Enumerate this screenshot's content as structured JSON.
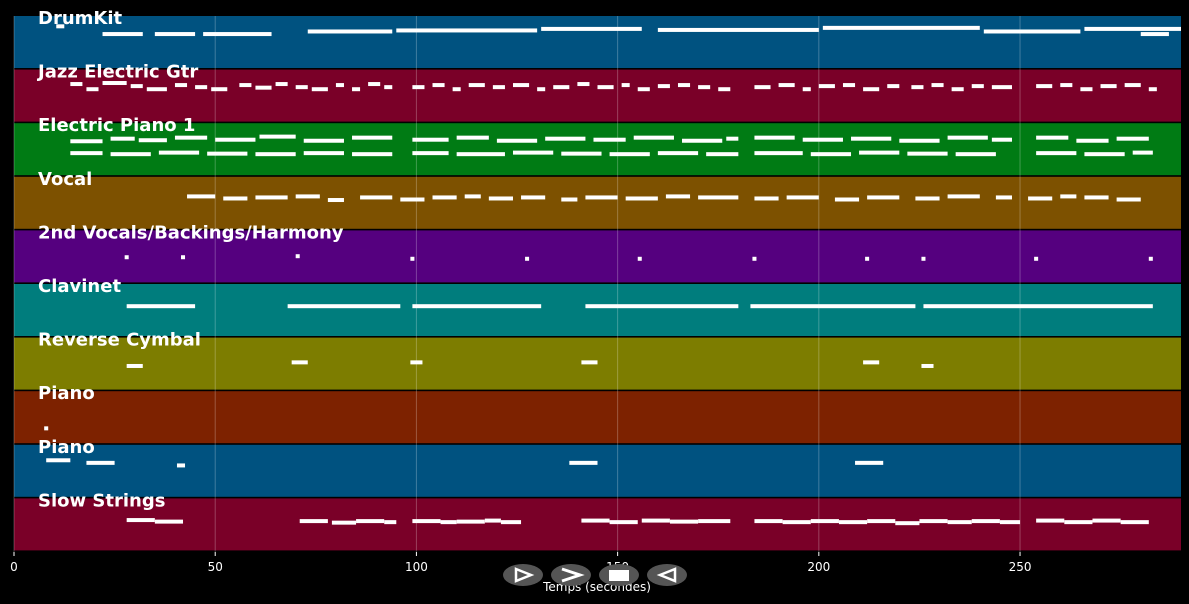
{
  "chart_data": {
    "type": "piano-roll",
    "xlabel": "Temps (secondes)",
    "xlim": [
      0,
      290
    ],
    "xticks": [
      0,
      50,
      100,
      150,
      200,
      250
    ],
    "grid": true,
    "tracks": [
      {
        "name": "DrumKit",
        "color": "#005280",
        "notes": [
          [
            10.5,
            12.5,
            0.8
          ],
          [
            22,
            32,
            0.65
          ],
          [
            35,
            45,
            0.65
          ],
          [
            47,
            64,
            0.65
          ],
          [
            73,
            94,
            0.7
          ],
          [
            95,
            130,
            0.72
          ],
          [
            131,
            156,
            0.75
          ],
          [
            160,
            200,
            0.73
          ],
          [
            201,
            240,
            0.77
          ],
          [
            241,
            265,
            0.7
          ],
          [
            266,
            290,
            0.75
          ],
          [
            280,
            287,
            0.65
          ]
        ]
      },
      {
        "name": "Jazz Electric Gtr",
        "color": "#7a0028",
        "notes": [
          [
            14,
            17,
            0.72
          ],
          [
            18,
            21,
            0.62
          ],
          [
            22,
            28,
            0.74
          ],
          [
            29,
            32,
            0.68
          ],
          [
            33,
            38,
            0.62
          ],
          [
            40,
            43,
            0.7
          ],
          [
            45,
            48,
            0.66
          ],
          [
            49,
            53,
            0.62
          ],
          [
            56,
            59,
            0.7
          ],
          [
            60,
            64,
            0.65
          ],
          [
            65,
            68,
            0.72
          ],
          [
            70,
            73,
            0.66
          ],
          [
            74,
            78,
            0.62
          ],
          [
            80,
            82,
            0.7
          ],
          [
            84,
            86,
            0.62
          ],
          [
            88,
            91,
            0.72
          ],
          [
            92,
            94,
            0.66
          ],
          [
            99,
            102,
            0.66
          ],
          [
            104,
            107,
            0.7
          ],
          [
            109,
            111,
            0.62
          ],
          [
            113,
            117,
            0.7
          ],
          [
            119,
            122,
            0.66
          ],
          [
            124,
            128,
            0.7
          ],
          [
            130,
            132,
            0.62
          ],
          [
            134,
            138,
            0.66
          ],
          [
            140,
            143,
            0.72
          ],
          [
            145,
            149,
            0.66
          ],
          [
            151,
            153,
            0.7
          ],
          [
            155,
            158,
            0.62
          ],
          [
            160,
            163,
            0.68
          ],
          [
            165,
            168,
            0.7
          ],
          [
            170,
            173,
            0.66
          ],
          [
            175,
            178,
            0.62
          ],
          [
            184,
            188,
            0.66
          ],
          [
            190,
            194,
            0.7
          ],
          [
            196,
            198,
            0.62
          ],
          [
            200,
            204,
            0.68
          ],
          [
            206,
            209,
            0.7
          ],
          [
            211,
            215,
            0.62
          ],
          [
            217,
            220,
            0.68
          ],
          [
            223,
            226,
            0.66
          ],
          [
            228,
            231,
            0.7
          ],
          [
            233,
            236,
            0.62
          ],
          [
            238,
            241,
            0.68
          ],
          [
            243,
            248,
            0.66
          ],
          [
            254,
            258,
            0.68
          ],
          [
            260,
            263,
            0.7
          ],
          [
            265,
            268,
            0.62
          ],
          [
            270,
            274,
            0.68
          ],
          [
            276,
            280,
            0.7
          ],
          [
            282,
            284,
            0.62
          ]
        ]
      },
      {
        "name": "Electric Piano 1",
        "color": "#007b14",
        "notes": [
          [
            14,
            22,
            0.65
          ],
          [
            24,
            30,
            0.7
          ],
          [
            31,
            38,
            0.67
          ],
          [
            40,
            48,
            0.72
          ],
          [
            50,
            60,
            0.68
          ],
          [
            61,
            70,
            0.74
          ],
          [
            72,
            82,
            0.66
          ],
          [
            84,
            94,
            0.72
          ],
          [
            99,
            108,
            0.68
          ],
          [
            110,
            118,
            0.72
          ],
          [
            120,
            130,
            0.66
          ],
          [
            132,
            142,
            0.7
          ],
          [
            144,
            152,
            0.68
          ],
          [
            154,
            164,
            0.72
          ],
          [
            166,
            176,
            0.66
          ],
          [
            177,
            180,
            0.7
          ],
          [
            184,
            194,
            0.72
          ],
          [
            196,
            206,
            0.68
          ],
          [
            208,
            218,
            0.7
          ],
          [
            220,
            230,
            0.66
          ],
          [
            232,
            242,
            0.72
          ],
          [
            243,
            248,
            0.68
          ],
          [
            254,
            262,
            0.72
          ],
          [
            264,
            272,
            0.66
          ],
          [
            274,
            282,
            0.7
          ],
          [
            14,
            22,
            0.42
          ],
          [
            24,
            34,
            0.4
          ],
          [
            36,
            46,
            0.43
          ],
          [
            48,
            58,
            0.41
          ],
          [
            60,
            70,
            0.4
          ],
          [
            72,
            82,
            0.42
          ],
          [
            84,
            94,
            0.4
          ],
          [
            99,
            108,
            0.42
          ],
          [
            110,
            122,
            0.4
          ],
          [
            124,
            134,
            0.43
          ],
          [
            136,
            146,
            0.41
          ],
          [
            148,
            158,
            0.4
          ],
          [
            160,
            170,
            0.42
          ],
          [
            172,
            180,
            0.4
          ],
          [
            184,
            196,
            0.42
          ],
          [
            198,
            208,
            0.4
          ],
          [
            210,
            220,
            0.43
          ],
          [
            222,
            232,
            0.41
          ],
          [
            234,
            244,
            0.4
          ],
          [
            254,
            264,
            0.42
          ],
          [
            266,
            276,
            0.4
          ],
          [
            278,
            283,
            0.43
          ]
        ]
      },
      {
        "name": "Vocal",
        "color": "#7d5100",
        "notes": [
          [
            43,
            50,
            0.62
          ],
          [
            52,
            58,
            0.58
          ],
          [
            60,
            68,
            0.6
          ],
          [
            70,
            76,
            0.62
          ],
          [
            78,
            82,
            0.55
          ],
          [
            86,
            94,
            0.6
          ],
          [
            96,
            102,
            0.56
          ],
          [
            104,
            110,
            0.6
          ],
          [
            112,
            116,
            0.62
          ],
          [
            118,
            124,
            0.58
          ],
          [
            126,
            132,
            0.6
          ],
          [
            136,
            140,
            0.56
          ],
          [
            142,
            150,
            0.6
          ],
          [
            152,
            160,
            0.58
          ],
          [
            162,
            168,
            0.62
          ],
          [
            170,
            180,
            0.6
          ],
          [
            184,
            190,
            0.58
          ],
          [
            192,
            200,
            0.6
          ],
          [
            204,
            210,
            0.56
          ],
          [
            212,
            220,
            0.6
          ],
          [
            224,
            230,
            0.58
          ],
          [
            232,
            240,
            0.62
          ],
          [
            244,
            248,
            0.6
          ],
          [
            252,
            258,
            0.58
          ],
          [
            260,
            264,
            0.62
          ],
          [
            266,
            272,
            0.6
          ],
          [
            274,
            280,
            0.56
          ]
        ]
      },
      {
        "name": "2nd Vocals/Backings/Harmony",
        "color": "#55007f",
        "notes": [
          [
            27.5,
            28.5,
            0.48
          ],
          [
            41.5,
            42.5,
            0.48
          ],
          [
            70,
            71,
            0.5
          ],
          [
            98.5,
            99.5,
            0.45
          ],
          [
            127,
            128,
            0.45
          ],
          [
            155,
            156,
            0.45
          ],
          [
            183.5,
            184.5,
            0.45
          ],
          [
            211.5,
            212.5,
            0.45
          ],
          [
            225.5,
            226.5,
            0.45
          ],
          [
            253.5,
            254.5,
            0.45
          ],
          [
            282,
            283,
            0.45
          ]
        ]
      },
      {
        "name": "Clavinet",
        "color": "#007d7d",
        "notes": [
          [
            28,
            45,
            0.57
          ],
          [
            68,
            96,
            0.57
          ],
          [
            99,
            131,
            0.57
          ],
          [
            142,
            180,
            0.57
          ],
          [
            183,
            224,
            0.57
          ],
          [
            226,
            283,
            0.57
          ]
        ]
      },
      {
        "name": "Reverse Cymbal",
        "color": "#7d7d00",
        "notes": [
          [
            28,
            32,
            0.45
          ],
          [
            69,
            73,
            0.52
          ],
          [
            98.5,
            101.5,
            0.52
          ],
          [
            141,
            145,
            0.52
          ],
          [
            211,
            215,
            0.52
          ],
          [
            225.5,
            228.5,
            0.45
          ]
        ]
      },
      {
        "name": "Piano",
        "color": "#7d2200",
        "notes": [
          [
            7.5,
            8.5,
            0.28
          ]
        ]
      },
      {
        "name": "Piano",
        "color": "#005280",
        "notes": [
          [
            8,
            14,
            0.7
          ],
          [
            18,
            25,
            0.65
          ],
          [
            40.5,
            42.5,
            0.6
          ],
          [
            138,
            145,
            0.65
          ],
          [
            209,
            216,
            0.65
          ]
        ]
      },
      {
        "name": "Slow Strings",
        "color": "#7a0028",
        "notes": [
          [
            28,
            35,
            0.58
          ],
          [
            35,
            42,
            0.55
          ],
          [
            71,
            78,
            0.56
          ],
          [
            79,
            85,
            0.53
          ],
          [
            85,
            92,
            0.56
          ],
          [
            92,
            95,
            0.54
          ],
          [
            99,
            106,
            0.56
          ],
          [
            106,
            110,
            0.54
          ],
          [
            110,
            117,
            0.55
          ],
          [
            117,
            121,
            0.57
          ],
          [
            121,
            126,
            0.54
          ],
          [
            141,
            148,
            0.57
          ],
          [
            148,
            155,
            0.54
          ],
          [
            156,
            163,
            0.57
          ],
          [
            163,
            170,
            0.55
          ],
          [
            170,
            178,
            0.56
          ],
          [
            184,
            191,
            0.56
          ],
          [
            191,
            198,
            0.54
          ],
          [
            198,
            205,
            0.56
          ],
          [
            205,
            212,
            0.54
          ],
          [
            212,
            219,
            0.56
          ],
          [
            219,
            225,
            0.52
          ],
          [
            225,
            232,
            0.56
          ],
          [
            232,
            238,
            0.54
          ],
          [
            238,
            245,
            0.56
          ],
          [
            245,
            250,
            0.54
          ],
          [
            254,
            261,
            0.57
          ],
          [
            261,
            268,
            0.54
          ],
          [
            268,
            275,
            0.57
          ],
          [
            275,
            282,
            0.54
          ]
        ]
      }
    ]
  },
  "controls": {
    "icons": [
      "play-icon",
      "fast-forward-icon",
      "stop-icon",
      "rewind-icon"
    ],
    "fill": "#555555",
    "glyph": "#ffffff"
  }
}
